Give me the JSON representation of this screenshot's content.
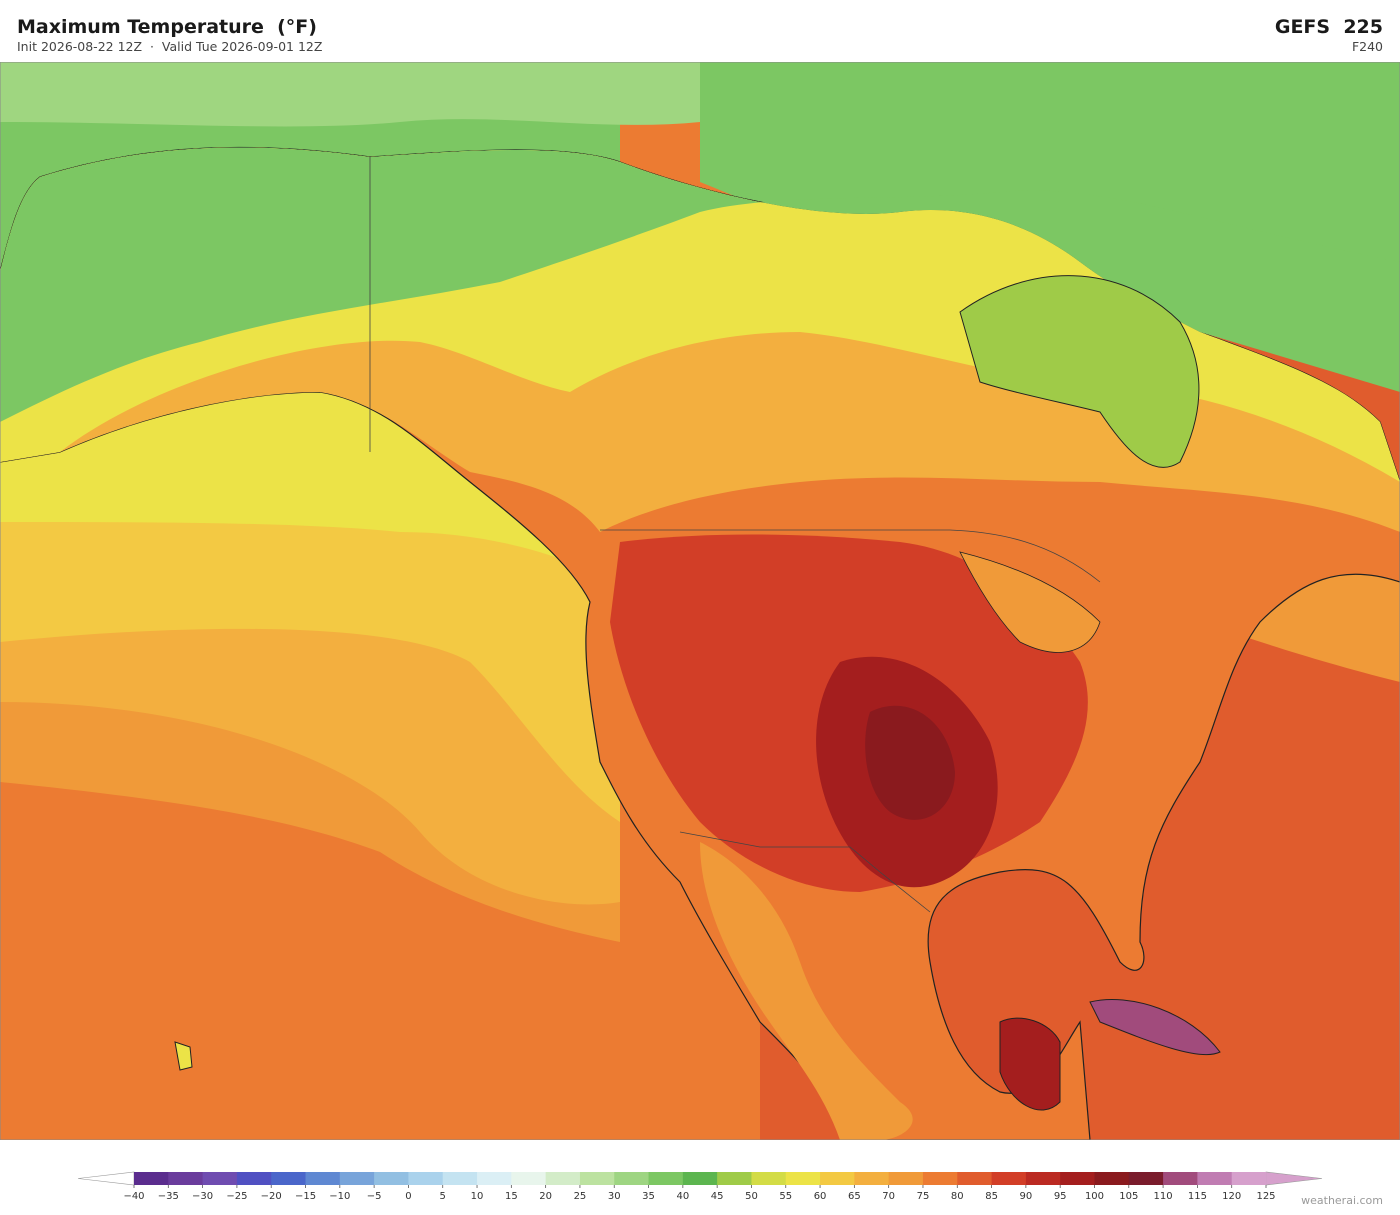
{
  "header": {
    "title": "Maximum Temperature  (°F)",
    "subtitle": "Init 2026-08-22 12Z  ·  Valid Tue 2026-09-01 12Z",
    "model": "GEFS  225",
    "forecast_hour": "F240"
  },
  "colorbar": {
    "ticks": [
      {
        "value": -40,
        "label": "−40"
      },
      {
        "value": -35,
        "label": "−35"
      },
      {
        "value": -30,
        "label": "−30"
      },
      {
        "value": -25,
        "label": "−25"
      },
      {
        "value": -20,
        "label": "−20"
      },
      {
        "value": -15,
        "label": "−15"
      },
      {
        "value": -10,
        "label": "−10"
      },
      {
        "value": -5,
        "label": "−5"
      },
      0,
      5,
      10,
      15,
      20,
      25,
      30,
      35,
      40,
      45,
      50,
      55,
      60,
      65,
      70,
      75,
      80,
      85,
      90,
      95,
      100,
      105,
      110,
      115,
      120,
      125
    ],
    "colors": [
      "#5b2d8e",
      "#6a3c9c",
      "#6f4cb0",
      "#5050c2",
      "#4a66ca",
      "#5f88d2",
      "#78a4da",
      "#92bfe2",
      "#aad2ec",
      "#c4e3f1",
      "#dbeff5",
      "#e8f5ec",
      "#d3ecc8",
      "#bce2a0",
      "#9ed582",
      "#7cc763",
      "#5cb54f",
      "#9fcb48",
      "#d3dc46",
      "#ece347",
      "#f3c943",
      "#f3af3f",
      "#f09a39",
      "#ec7b32",
      "#e05c2d",
      "#d23e27",
      "#bb2a22",
      "#a41e1e",
      "#8a1a1e",
      "#7a1c2c",
      "#a14b7c",
      "#c07cb2",
      "#d6a0cc"
    ],
    "under_color": "#ffffff",
    "over_color": "#d6a0cc"
  },
  "watermark": "weatherai.com"
}
